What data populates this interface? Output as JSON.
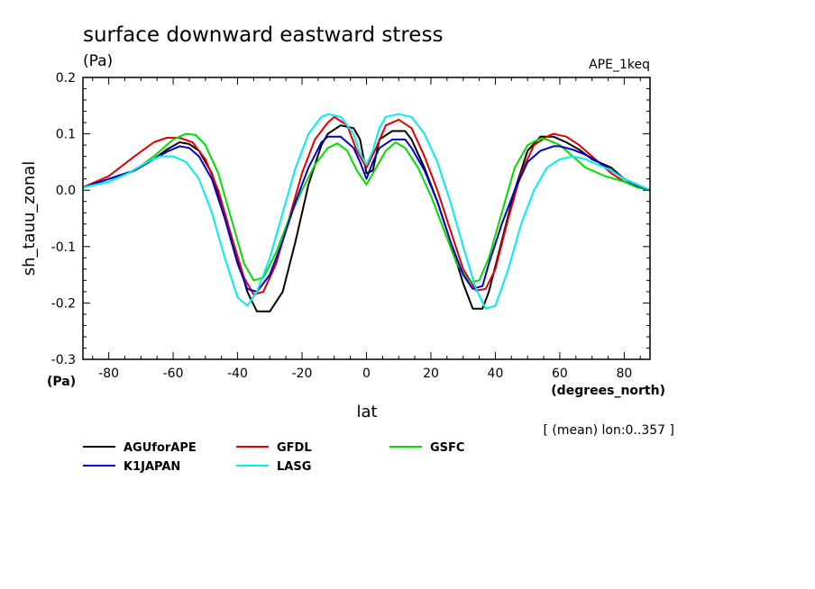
{
  "chart_data": {
    "type": "line",
    "title": "surface downward eastward stress",
    "units": "(Pa)",
    "experiment": "APE_1keq",
    "ylabel": "sh_tauu_zonal",
    "ylabel_units": "(Pa)",
    "xlabel": "lat",
    "xlabel_units": "(degrees_north)",
    "average_note": "[ (mean) lon:0..357 ]",
    "xlim": [
      -88,
      88
    ],
    "ylim": [
      -0.3,
      0.2
    ],
    "x_ticks": [
      -80,
      -60,
      -40,
      -20,
      0,
      20,
      40,
      60,
      80
    ],
    "x_tick_labels": [
      "-80",
      "-60",
      "-40",
      "-20",
      "0",
      "20",
      "40",
      "60",
      "80"
    ],
    "y_ticks": [
      -0.3,
      -0.2,
      -0.1,
      0.0,
      0.1,
      0.2
    ],
    "y_tick_labels": [
      "-0.3",
      "-0.2",
      "-0.1",
      "0.0",
      "0.1",
      "0.2"
    ],
    "grid": false,
    "legend_position": "bottom-left",
    "series": [
      {
        "name": "AGUforAPE",
        "color": "#000000",
        "x": [
          -88,
          -80,
          -72,
          -66,
          -62,
          -58,
          -55,
          -52,
          -48,
          -44,
          -40,
          -37,
          -34,
          -30,
          -26,
          -22,
          -18,
          -14,
          -12,
          -8,
          -4,
          -2,
          0,
          2,
          4,
          8,
          12,
          14,
          18,
          22,
          26,
          30,
          33,
          36,
          38,
          42,
          46,
          50,
          54,
          58,
          62,
          66,
          70,
          76,
          80,
          84,
          88
        ],
        "y": [
          0.005,
          0.02,
          0.035,
          0.055,
          0.072,
          0.085,
          0.082,
          0.07,
          0.03,
          -0.04,
          -0.12,
          -0.18,
          -0.215,
          -0.215,
          -0.18,
          -0.09,
          0.01,
          0.08,
          0.1,
          0.115,
          0.11,
          0.09,
          0.03,
          0.035,
          0.09,
          0.105,
          0.105,
          0.09,
          0.04,
          -0.02,
          -0.09,
          -0.165,
          -0.21,
          -0.21,
          -0.18,
          -0.09,
          0.0,
          0.07,
          0.095,
          0.095,
          0.085,
          0.072,
          0.055,
          0.04,
          0.02,
          0.01,
          0.0
        ]
      },
      {
        "name": "GFDL",
        "color": "#e00000",
        "x": [
          -88,
          -80,
          -72,
          -66,
          -62,
          -58,
          -54,
          -50,
          -46,
          -42,
          -38,
          -35,
          -32,
          -28,
          -24,
          -20,
          -16,
          -12,
          -10,
          -6,
          -3,
          0,
          3,
          6,
          10,
          14,
          18,
          22,
          26,
          30,
          34,
          37,
          40,
          44,
          48,
          52,
          56,
          58,
          62,
          66,
          70,
          76,
          80,
          84,
          88
        ],
        "y": [
          0.005,
          0.025,
          0.06,
          0.085,
          0.093,
          0.093,
          0.085,
          0.055,
          0.0,
          -0.08,
          -0.155,
          -0.185,
          -0.18,
          -0.13,
          -0.05,
          0.03,
          0.09,
          0.12,
          0.13,
          0.115,
          0.07,
          0.04,
          0.075,
          0.115,
          0.125,
          0.11,
          0.06,
          0.0,
          -0.07,
          -0.14,
          -0.178,
          -0.175,
          -0.14,
          -0.05,
          0.03,
          0.08,
          0.095,
          0.1,
          0.095,
          0.08,
          0.06,
          0.03,
          0.015,
          0.008,
          0.0
        ]
      },
      {
        "name": "GSFC",
        "color": "#00dd00",
        "x": [
          -88,
          -80,
          -72,
          -66,
          -60,
          -56,
          -53,
          -50,
          -46,
          -42,
          -38,
          -35,
          -32,
          -28,
          -24,
          -20,
          -16,
          -12,
          -9,
          -6,
          -3,
          0,
          3,
          6,
          9,
          12,
          16,
          20,
          24,
          28,
          32,
          35,
          38,
          42,
          46,
          50,
          54,
          56,
          60,
          64,
          68,
          74,
          80,
          84,
          88
        ],
        "y": [
          0.005,
          0.015,
          0.035,
          0.06,
          0.09,
          0.1,
          0.098,
          0.08,
          0.03,
          -0.05,
          -0.13,
          -0.16,
          -0.155,
          -0.11,
          -0.05,
          0.0,
          0.045,
          0.075,
          0.083,
          0.07,
          0.035,
          0.01,
          0.04,
          0.07,
          0.085,
          0.075,
          0.04,
          -0.01,
          -0.07,
          -0.13,
          -0.163,
          -0.16,
          -0.12,
          -0.04,
          0.04,
          0.08,
          0.092,
          0.09,
          0.08,
          0.06,
          0.04,
          0.025,
          0.015,
          0.005,
          0.0
        ]
      },
      {
        "name": "K1JAPAN",
        "color": "#0000cc",
        "x": [
          -88,
          -80,
          -72,
          -66,
          -62,
          -58,
          -55,
          -52,
          -48,
          -44,
          -40,
          -37,
          -34,
          -30,
          -26,
          -22,
          -18,
          -14,
          -12,
          -8,
          -4,
          -2,
          0,
          2,
          4,
          8,
          12,
          14,
          18,
          22,
          26,
          30,
          33,
          36,
          38,
          42,
          46,
          50,
          54,
          58,
          60,
          64,
          68,
          72,
          76,
          80,
          84,
          88
        ],
        "y": [
          0.005,
          0.02,
          0.035,
          0.055,
          0.068,
          0.078,
          0.075,
          0.06,
          0.02,
          -0.05,
          -0.13,
          -0.175,
          -0.18,
          -0.15,
          -0.09,
          -0.02,
          0.04,
          0.085,
          0.095,
          0.095,
          0.075,
          0.05,
          0.02,
          0.05,
          0.075,
          0.09,
          0.09,
          0.075,
          0.035,
          -0.02,
          -0.09,
          -0.15,
          -0.175,
          -0.17,
          -0.13,
          -0.06,
          0.0,
          0.05,
          0.07,
          0.078,
          0.078,
          0.072,
          0.063,
          0.05,
          0.035,
          0.02,
          0.008,
          0.0
        ]
      },
      {
        "name": "LASG",
        "color": "#00eeee",
        "x": [
          -88,
          -80,
          -74,
          -68,
          -64,
          -60,
          -56,
          -52,
          -48,
          -44,
          -40,
          -37,
          -34,
          -30,
          -26,
          -22,
          -18,
          -14,
          -12,
          -8,
          -4,
          -2,
          0,
          2,
          4,
          6,
          10,
          14,
          18,
          22,
          26,
          30,
          34,
          37,
          40,
          44,
          48,
          52,
          56,
          60,
          64,
          68,
          72,
          76,
          80,
          84,
          88
        ],
        "y": [
          0.005,
          0.015,
          0.03,
          0.05,
          0.06,
          0.06,
          0.05,
          0.02,
          -0.04,
          -0.12,
          -0.19,
          -0.205,
          -0.18,
          -0.12,
          -0.04,
          0.04,
          0.1,
          0.13,
          0.135,
          0.13,
          0.1,
          0.065,
          0.045,
          0.07,
          0.11,
          0.13,
          0.135,
          0.13,
          0.1,
          0.05,
          -0.02,
          -0.1,
          -0.175,
          -0.21,
          -0.205,
          -0.14,
          -0.06,
          0.0,
          0.04,
          0.055,
          0.06,
          0.055,
          0.045,
          0.035,
          0.02,
          0.01,
          0.0
        ]
      }
    ]
  }
}
